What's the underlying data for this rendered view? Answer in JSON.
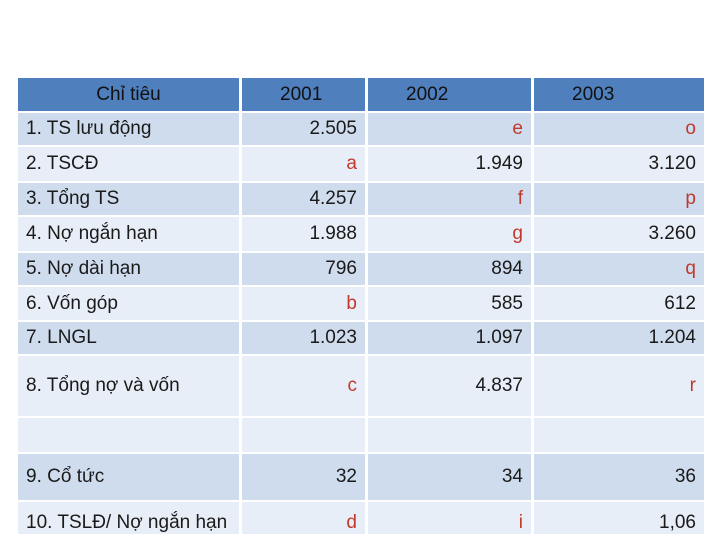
{
  "header": {
    "label": "Chỉ tiêu",
    "years": [
      "2001",
      "2002",
      "2003"
    ]
  },
  "rows": [
    {
      "label": "1. TS lưu động",
      "values": [
        "2.505",
        "e",
        "o"
      ]
    },
    {
      "label": "2. TSCĐ",
      "values": [
        "a",
        "1.949",
        "3.120"
      ]
    },
    {
      "label": "3. Tổng TS",
      "values": [
        "4.257",
        "f",
        "p"
      ]
    },
    {
      "label": "4. Nợ ngắn hạn",
      "values": [
        "1.988",
        "g",
        "3.260"
      ]
    },
    {
      "label": "5. Nợ dài hạn",
      "values": [
        "796",
        "894",
        "q"
      ]
    },
    {
      "label": "6. Vốn góp",
      "values": [
        "b",
        "585",
        "612"
      ]
    },
    {
      "label": "7. LNGL",
      "values": [
        "1.023",
        "1.097",
        "1.204"
      ]
    },
    {
      "label": "8. Tổng nợ và vốn",
      "values": [
        "c",
        "4.837",
        "r"
      ]
    },
    {
      "label": "9. Cổ tức",
      "values": [
        "32",
        "34",
        "36"
      ]
    },
    {
      "label": "10. TSLĐ/ Nợ ngắn hạn",
      "values": [
        "d",
        "i",
        "1,06"
      ]
    }
  ]
}
